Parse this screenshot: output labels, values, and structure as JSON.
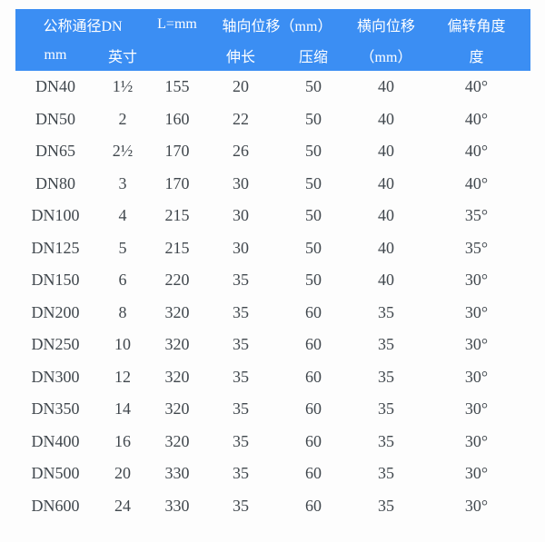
{
  "colors": {
    "header_bg": "#3b8ef3",
    "header_text": "#ffffff",
    "body_text": "#40474d",
    "page_bg": "#fdfdfd"
  },
  "table": {
    "header_row1": {
      "nominal_diameter": "公称通径DN",
      "length": "L=mm",
      "axial_displacement": "轴向位移（mm）",
      "lateral_displacement": "横向位移",
      "deflection_angle": "偏转角度"
    },
    "header_row2": {
      "mm": "mm",
      "inch": "英寸",
      "length_blank": "",
      "extension": "伸长",
      "compression": "压缩",
      "lateral_mm": "（mm）",
      "degree": "度"
    },
    "rows": [
      [
        "DN40",
        "1½",
        "155",
        "20",
        "50",
        "40",
        "40°"
      ],
      [
        "DN50",
        "2",
        "160",
        "22",
        "50",
        "40",
        "40°"
      ],
      [
        "DN65",
        "2½",
        "170",
        "26",
        "50",
        "40",
        "40°"
      ],
      [
        "DN80",
        "3",
        "170",
        "30",
        "50",
        "40",
        "40°"
      ],
      [
        "DN100",
        "4",
        "215",
        "30",
        "50",
        "40",
        "35°"
      ],
      [
        "DN125",
        "5",
        "215",
        "30",
        "50",
        "40",
        "35°"
      ],
      [
        "DN150",
        "6",
        "220",
        "35",
        "50",
        "40",
        "30°"
      ],
      [
        "DN200",
        "8",
        "320",
        "35",
        "60",
        "35",
        "30°"
      ],
      [
        "DN250",
        "10",
        "320",
        "35",
        "60",
        "35",
        "30°"
      ],
      [
        "DN300",
        "12",
        "320",
        "35",
        "60",
        "35",
        "30°"
      ],
      [
        "DN350",
        "14",
        "320",
        "35",
        "60",
        "35",
        "30°"
      ],
      [
        "DN400",
        "16",
        "320",
        "35",
        "60",
        "35",
        "30°"
      ],
      [
        "DN500",
        "20",
        "330",
        "35",
        "60",
        "35",
        "30°"
      ],
      [
        "DN600",
        "24",
        "330",
        "35",
        "60",
        "35",
        "30°"
      ]
    ]
  }
}
